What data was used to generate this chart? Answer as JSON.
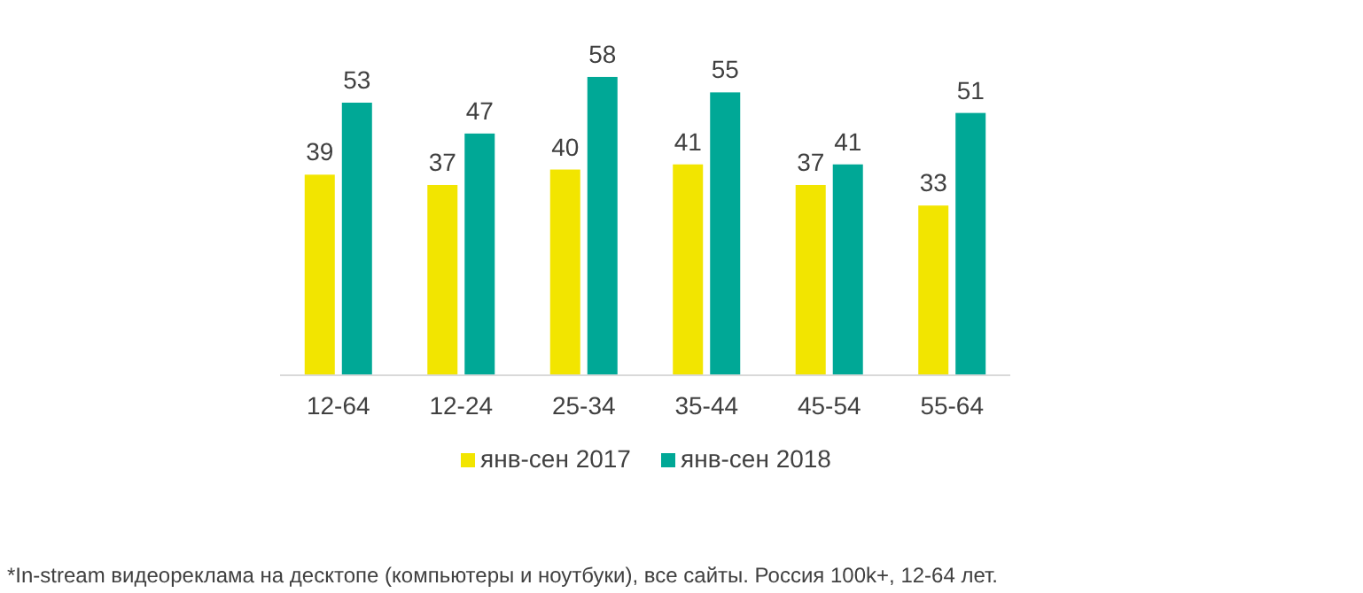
{
  "chart_data": {
    "type": "bar",
    "categories": [
      "12-64",
      "12-24",
      "25-34",
      "35-44",
      "45-54",
      "55-64"
    ],
    "series": [
      {
        "name": "янв-сен 2017",
        "color": "#f2e500",
        "values": [
          39,
          37,
          40,
          41,
          37,
          33
        ]
      },
      {
        "name": "янв-сен 2018",
        "color": "#00a896",
        "values": [
          53,
          47,
          58,
          55,
          41,
          51
        ]
      }
    ],
    "data_labels": true,
    "legend": "bottom",
    "annotations": [
      "*In-stream видеореклама на десктопе (компьютеры и ноутбуки), все сайты. Россия 100k+, 12-64 лет."
    ]
  }
}
